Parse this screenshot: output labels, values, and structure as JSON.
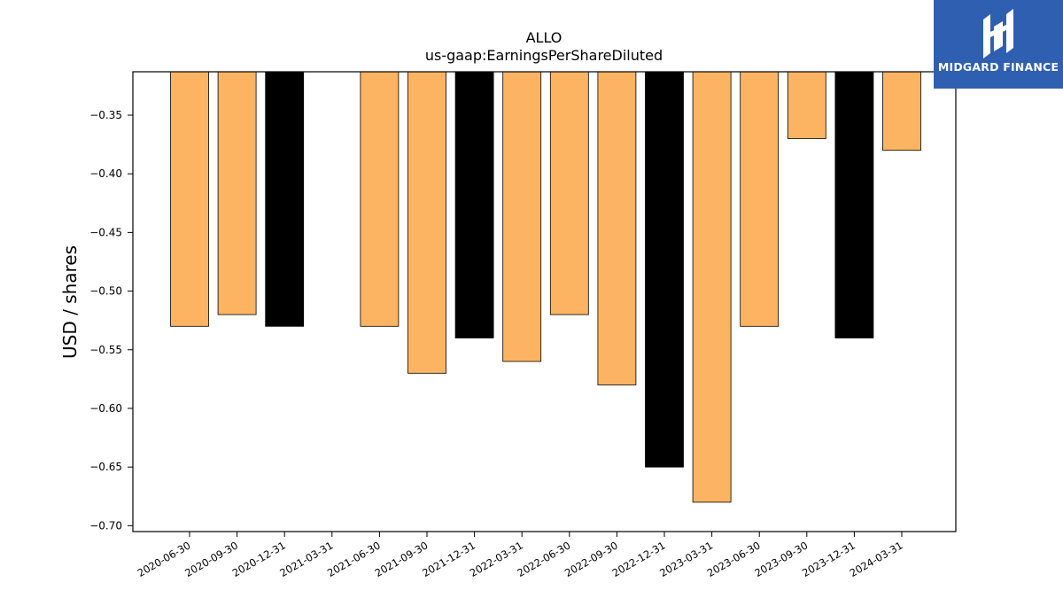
{
  "chart_data": {
    "type": "bar",
    "title": "ALLO",
    "subtitle": "us-gaap:EarningsPerShareDiluted",
    "xlabel": "",
    "ylabel": "USD / shares",
    "categories": [
      "2020-06-30",
      "2020-09-30",
      "2020-12-31",
      "2021-03-31",
      "2021-06-30",
      "2021-09-30",
      "2021-12-31",
      "2022-03-31",
      "2022-06-30",
      "2022-09-30",
      "2022-12-31",
      "2023-03-31",
      "2023-06-30",
      "2023-09-30",
      "2023-12-31",
      "2024-03-31"
    ],
    "values": [
      -0.53,
      -0.52,
      -0.53,
      null,
      -0.53,
      -0.57,
      -0.54,
      -0.56,
      -0.52,
      -0.58,
      -0.65,
      -0.68,
      -0.53,
      -0.37,
      -0.54,
      -0.38
    ],
    "highlight": [
      false,
      false,
      true,
      false,
      false,
      false,
      true,
      false,
      false,
      false,
      true,
      false,
      false,
      false,
      true,
      false
    ],
    "colors": {
      "normal": "#fdb462",
      "highlight": "#000000",
      "edge": "#000000"
    },
    "ylim": [
      -0.705,
      -0.313
    ],
    "yticks": [
      -0.35,
      -0.4,
      -0.45,
      -0.5,
      -0.55,
      -0.6,
      -0.65,
      -0.7
    ],
    "ytick_labels": [
      "−0.35",
      "−0.40",
      "−0.45",
      "−0.50",
      "−0.55",
      "−0.60",
      "−0.65",
      "−0.70"
    ],
    "grid": false,
    "legend": "none"
  },
  "logo": {
    "text": "MIDGARD FINANCE",
    "icon": "midgard-logo-icon"
  }
}
